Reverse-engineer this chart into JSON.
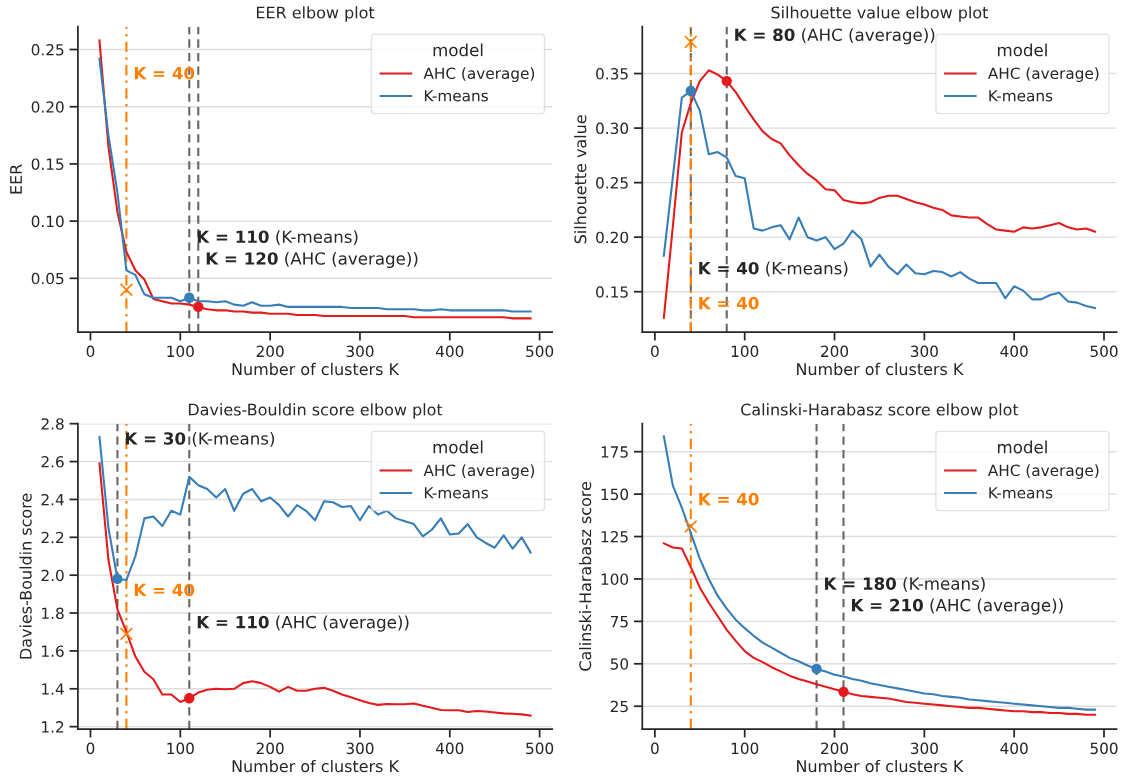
{
  "chart_data": [
    {
      "type": "line",
      "title": "EER elbow plot",
      "xlabel": "Number of clusters K",
      "ylabel": "EER",
      "x": [
        10,
        20,
        30,
        40,
        50,
        60,
        70,
        80,
        90,
        100,
        110,
        120,
        130,
        140,
        150,
        160,
        170,
        180,
        190,
        200,
        210,
        220,
        230,
        240,
        250,
        260,
        270,
        280,
        290,
        300,
        310,
        320,
        330,
        340,
        350,
        360,
        370,
        380,
        390,
        400,
        410,
        420,
        430,
        440,
        450,
        460,
        470,
        480,
        490
      ],
      "series": [
        {
          "name": "AHC (average)",
          "color": "#e41a1c",
          "values": [
            0.258,
            0.165,
            0.108,
            0.073,
            0.057,
            0.049,
            0.032,
            0.03,
            0.028,
            0.028,
            0.027,
            0.025,
            0.023,
            0.022,
            0.022,
            0.021,
            0.021,
            0.02,
            0.02,
            0.019,
            0.019,
            0.019,
            0.018,
            0.018,
            0.018,
            0.017,
            0.017,
            0.017,
            0.017,
            0.017,
            0.017,
            0.017,
            0.017,
            0.017,
            0.017,
            0.016,
            0.016,
            0.016,
            0.016,
            0.016,
            0.016,
            0.016,
            0.016,
            0.016,
            0.016,
            0.016,
            0.015,
            0.015,
            0.015
          ]
        },
        {
          "name": "K-means",
          "color": "#377eb8",
          "values": [
            0.242,
            0.175,
            0.125,
            0.057,
            0.053,
            0.036,
            0.033,
            0.033,
            0.033,
            0.03,
            0.033,
            0.03,
            0.03,
            0.029,
            0.03,
            0.027,
            0.026,
            0.029,
            0.026,
            0.026,
            0.027,
            0.025,
            0.025,
            0.025,
            0.025,
            0.025,
            0.025,
            0.025,
            0.024,
            0.024,
            0.024,
            0.024,
            0.023,
            0.023,
            0.023,
            0.023,
            0.022,
            0.022,
            0.023,
            0.022,
            0.022,
            0.022,
            0.022,
            0.022,
            0.022,
            0.022,
            0.021,
            0.021,
            0.021
          ]
        },
        {
          "type": "scatter",
          "marker": "cross",
          "color": "#ff7f00",
          "x": [
            40
          ],
          "values": [
            0.04
          ]
        },
        {
          "type": "scatter",
          "marker": "circle",
          "color": "#377eb8",
          "x": [
            110
          ],
          "values": [
            0.033
          ]
        },
        {
          "type": "scatter",
          "marker": "circle",
          "color": "#e41a1c",
          "x": [
            120
          ],
          "values": [
            0.025
          ]
        }
      ],
      "xlim": [
        -14,
        514
      ],
      "xticks": [
        0,
        100,
        200,
        300,
        400,
        500
      ],
      "ylim": [
        0.003,
        0.27
      ],
      "yticks": [
        0.05,
        {
          "value": 0.1,
          "label": "0.10"
        },
        0.15,
        {
          "value": 0.2,
          "label": "0.20"
        },
        0.25
      ],
      "grid": "y",
      "legend": "top right",
      "legend_title": "model",
      "ref_lines": [
        {
          "axis": "x",
          "value": 40,
          "color": "#ff7f00",
          "line_style": "dashdot"
        },
        {
          "axis": "x",
          "value": 110,
          "color": "#666666",
          "line_style": "dashed"
        },
        {
          "axis": "x",
          "value": 120,
          "color": "#666666",
          "line_style": "dashed"
        }
      ],
      "annotations": [
        {
          "text": "K = 40",
          "x": 40,
          "y": 0.224
        },
        {
          "text": "K = 110 (K-means)",
          "x": 110,
          "y": 0.081
        },
        {
          "text": "K = 120 (AHC (average))",
          "x": 120,
          "y": 0.062
        }
      ]
    },
    {
      "type": "line",
      "title": "Silhouette value elbow plot",
      "xlabel": "Number of clusters K",
      "ylabel": "Silhouette value",
      "x": [
        10,
        20,
        30,
        40,
        50,
        60,
        70,
        80,
        90,
        100,
        110,
        120,
        130,
        140,
        150,
        160,
        170,
        180,
        190,
        200,
        210,
        220,
        230,
        240,
        250,
        260,
        270,
        280,
        290,
        300,
        310,
        320,
        330,
        340,
        350,
        360,
        370,
        380,
        390,
        400,
        410,
        420,
        430,
        440,
        450,
        460,
        470,
        480,
        490
      ],
      "series": [
        {
          "name": "AHC (average)",
          "color": "#e41a1c",
          "values": [
            0.126,
            0.21,
            0.296,
            0.323,
            0.343,
            0.353,
            0.349,
            0.343,
            0.333,
            0.32,
            0.308,
            0.297,
            0.29,
            0.286,
            0.275,
            0.266,
            0.258,
            0.252,
            0.244,
            0.243,
            0.234,
            0.232,
            0.231,
            0.232,
            0.236,
            0.238,
            0.238,
            0.235,
            0.232,
            0.23,
            0.227,
            0.225,
            0.22,
            0.219,
            0.218,
            0.218,
            0.212,
            0.207,
            0.206,
            0.205,
            0.209,
            0.208,
            0.209,
            0.211,
            0.213,
            0.209,
            0.207,
            0.208,
            0.205
          ]
        },
        {
          "name": "K-means",
          "color": "#377eb8",
          "values": [
            0.183,
            0.255,
            0.328,
            0.334,
            0.316,
            0.276,
            0.278,
            0.273,
            0.256,
            0.254,
            0.208,
            0.206,
            0.209,
            0.211,
            0.198,
            0.218,
            0.2,
            0.197,
            0.2,
            0.189,
            0.194,
            0.206,
            0.198,
            0.173,
            0.184,
            0.173,
            0.166,
            0.175,
            0.167,
            0.166,
            0.169,
            0.168,
            0.164,
            0.168,
            0.162,
            0.158,
            0.158,
            0.158,
            0.144,
            0.155,
            0.151,
            0.143,
            0.143,
            0.147,
            0.149,
            0.141,
            0.14,
            0.137,
            0.135
          ]
        },
        {
          "type": "scatter",
          "marker": "cross",
          "color": "#ff7f00",
          "x": [
            40
          ],
          "values": [
            0.379
          ]
        },
        {
          "type": "scatter",
          "marker": "circle",
          "color": "#377eb8",
          "x": [
            40
          ],
          "values": [
            0.334
          ]
        },
        {
          "type": "scatter",
          "marker": "circle",
          "color": "#e41a1c",
          "x": [
            80
          ],
          "values": [
            0.343
          ]
        }
      ],
      "xlim": [
        -14,
        514
      ],
      "xticks": [
        0,
        100,
        200,
        300,
        400,
        500
      ],
      "ylim": [
        0.113,
        0.393
      ],
      "yticks": [
        0.15,
        {
          "value": 0.2,
          "label": "0.20"
        },
        0.25,
        {
          "value": 0.3,
          "label": "0.30"
        },
        0.35
      ],
      "grid": "y",
      "legend": "top right",
      "legend_title": "model",
      "ref_lines": [
        {
          "axis": "x",
          "value": 40,
          "color": "#666666",
          "line_style": "dashed"
        },
        {
          "axis": "x",
          "value": 40,
          "color": "#ff7f00",
          "line_style": "dashdot"
        },
        {
          "axis": "x",
          "value": 80,
          "color": "#666666",
          "line_style": "dashed"
        }
      ],
      "annotations": [
        {
          "text": "K = 40 (K-means)",
          "x": 40,
          "y": 0.166
        },
        {
          "text": "K = 40",
          "x": 40,
          "y": 0.134
        },
        {
          "text": "K = 80 (AHC (average))",
          "x": 80,
          "y": 0.38
        }
      ]
    },
    {
      "type": "line",
      "title": "Davies-Bouldin score elbow plot",
      "xlabel": "Number of clusters K",
      "ylabel": "Davies-Bouldin score",
      "x": [
        10,
        20,
        30,
        40,
        50,
        60,
        70,
        80,
        90,
        100,
        110,
        120,
        130,
        140,
        150,
        160,
        170,
        180,
        190,
        200,
        210,
        220,
        230,
        240,
        250,
        260,
        270,
        280,
        290,
        300,
        310,
        320,
        330,
        340,
        350,
        360,
        370,
        380,
        390,
        400,
        410,
        420,
        430,
        440,
        450,
        460,
        470,
        480,
        490
      ],
      "series": [
        {
          "name": "AHC (average)",
          "color": "#e41a1c",
          "values": [
            2.59,
            2.08,
            1.82,
            1.7,
            1.57,
            1.49,
            1.45,
            1.37,
            1.37,
            1.33,
            1.35,
            1.38,
            1.395,
            1.4,
            1.398,
            1.4,
            1.43,
            1.44,
            1.43,
            1.41,
            1.385,
            1.41,
            1.39,
            1.39,
            1.4,
            1.405,
            1.39,
            1.37,
            1.355,
            1.34,
            1.325,
            1.315,
            1.32,
            1.318,
            1.318,
            1.322,
            1.31,
            1.3,
            1.288,
            1.287,
            1.287,
            1.277,
            1.283,
            1.28,
            1.275,
            1.27,
            1.268,
            1.265,
            1.258
          ]
        },
        {
          "name": "K-means",
          "color": "#377eb8",
          "values": [
            2.73,
            2.25,
            1.98,
            1.975,
            2.1,
            2.3,
            2.31,
            2.26,
            2.34,
            2.32,
            2.52,
            2.475,
            2.455,
            2.41,
            2.455,
            2.34,
            2.43,
            2.455,
            2.39,
            2.41,
            2.37,
            2.31,
            2.37,
            2.34,
            2.29,
            2.39,
            2.385,
            2.36,
            2.365,
            2.29,
            2.365,
            2.32,
            2.34,
            2.3,
            2.285,
            2.27,
            2.205,
            2.24,
            2.3,
            2.215,
            2.22,
            2.27,
            2.2,
            2.17,
            2.145,
            2.21,
            2.14,
            2.2,
            2.12
          ]
        },
        {
          "type": "scatter",
          "marker": "cross",
          "color": "#ff7f00",
          "x": [
            40
          ],
          "values": [
            1.69
          ]
        },
        {
          "type": "scatter",
          "marker": "circle",
          "color": "#377eb8",
          "x": [
            30
          ],
          "values": [
            1.98
          ]
        },
        {
          "type": "scatter",
          "marker": "circle",
          "color": "#e41a1c",
          "x": [
            110
          ],
          "values": [
            1.35
          ]
        }
      ],
      "xlim": [
        -14,
        514
      ],
      "xticks": [
        0,
        100,
        200,
        300,
        400,
        500
      ],
      "ylim": [
        1.187,
        2.8
      ],
      "yticks": [
        1.2,
        1.4,
        1.6,
        1.8,
        {
          "value": 2.0,
          "label": "2.0"
        },
        2.2,
        2.4,
        2.6,
        2.8
      ],
      "grid": "y",
      "legend": "top right",
      "legend_title": "model",
      "ref_lines": [
        {
          "axis": "x",
          "value": 30,
          "color": "#666666",
          "line_style": "dashed"
        },
        {
          "axis": "x",
          "value": 40,
          "color": "#ff7f00",
          "line_style": "dashdot"
        },
        {
          "axis": "x",
          "value": 110,
          "color": "#666666",
          "line_style": "dashed"
        }
      ],
      "annotations": [
        {
          "text": "K = 30 (K-means)",
          "x": 30,
          "y": 2.69
        },
        {
          "text": "K = 40",
          "x": 40,
          "y": 1.89
        },
        {
          "text": "K = 110 (AHC (average))",
          "x": 110,
          "y": 1.72
        }
      ]
    },
    {
      "type": "line",
      "title": "Calinski-Harabasz score elbow plot",
      "xlabel": "Number of clusters K",
      "ylabel": "Calinski-Harabasz score",
      "x": [
        10,
        20,
        30,
        40,
        50,
        60,
        70,
        80,
        90,
        100,
        110,
        120,
        130,
        140,
        150,
        160,
        170,
        180,
        190,
        200,
        210,
        220,
        230,
        240,
        250,
        260,
        270,
        280,
        290,
        300,
        310,
        320,
        330,
        340,
        350,
        360,
        370,
        380,
        390,
        400,
        410,
        420,
        430,
        440,
        450,
        460,
        470,
        480,
        490
      ],
      "series": [
        {
          "name": "AHC (average)",
          "color": "#e41a1c",
          "values": [
            121,
            118.5,
            118,
            107,
            95,
            86,
            78,
            70,
            63.5,
            57.5,
            53.5,
            51,
            48,
            45.5,
            43,
            41,
            39.5,
            38,
            36.5,
            35,
            33.5,
            32,
            31,
            30.5,
            30,
            29.5,
            28.5,
            27.5,
            27,
            26.5,
            26,
            25.5,
            25,
            24.5,
            24,
            24,
            23.5,
            23,
            22.5,
            22,
            22,
            21.5,
            21.5,
            21,
            21,
            20.5,
            20.5,
            20,
            20
          ]
        },
        {
          "name": "K-means",
          "color": "#377eb8",
          "values": [
            184,
            155,
            142,
            127,
            112,
            100,
            90,
            82.5,
            76,
            71,
            66.5,
            62.5,
            59.5,
            56.5,
            53.5,
            51.5,
            49,
            47,
            45.5,
            43.5,
            42.5,
            41,
            40,
            38.5,
            37.5,
            36.5,
            35.5,
            34.5,
            33.5,
            32.5,
            32,
            31,
            30.5,
            30,
            29,
            28.5,
            28,
            27.5,
            27,
            26.5,
            26,
            25.5,
            25,
            24.5,
            24,
            24,
            23.5,
            23,
            23
          ]
        },
        {
          "type": "scatter",
          "marker": "cross",
          "color": "#ff7f00",
          "x": [
            40
          ],
          "values": [
            131
          ]
        },
        {
          "type": "scatter",
          "marker": "circle",
          "color": "#377eb8",
          "x": [
            180
          ],
          "values": [
            47
          ]
        },
        {
          "type": "scatter",
          "marker": "circle",
          "color": "#e41a1c",
          "x": [
            210
          ],
          "values": [
            33.5
          ]
        }
      ],
      "xlim": [
        -14,
        514
      ],
      "xticks": [
        0,
        100,
        200,
        300,
        400,
        500
      ],
      "ylim": [
        11.5,
        191.5
      ],
      "yticks": [
        25,
        50,
        75,
        100,
        125,
        150,
        175
      ],
      "grid": "y",
      "legend": "top right",
      "legend_title": "model",
      "ref_lines": [
        {
          "axis": "x",
          "value": 40,
          "color": "#ff7f00",
          "line_style": "dashdot"
        },
        {
          "axis": "x",
          "value": 180,
          "color": "#666666",
          "line_style": "dashed"
        },
        {
          "axis": "x",
          "value": 210,
          "color": "#666666",
          "line_style": "dashed"
        }
      ],
      "annotations": [
        {
          "text": "K = 40",
          "x": 40,
          "y": 143.5
        },
        {
          "text": "K = 180 (K-means)",
          "x": 180,
          "y": 93.7
        },
        {
          "text": "K = 210 (AHC (average))",
          "x": 210,
          "y": 81
        }
      ]
    }
  ]
}
